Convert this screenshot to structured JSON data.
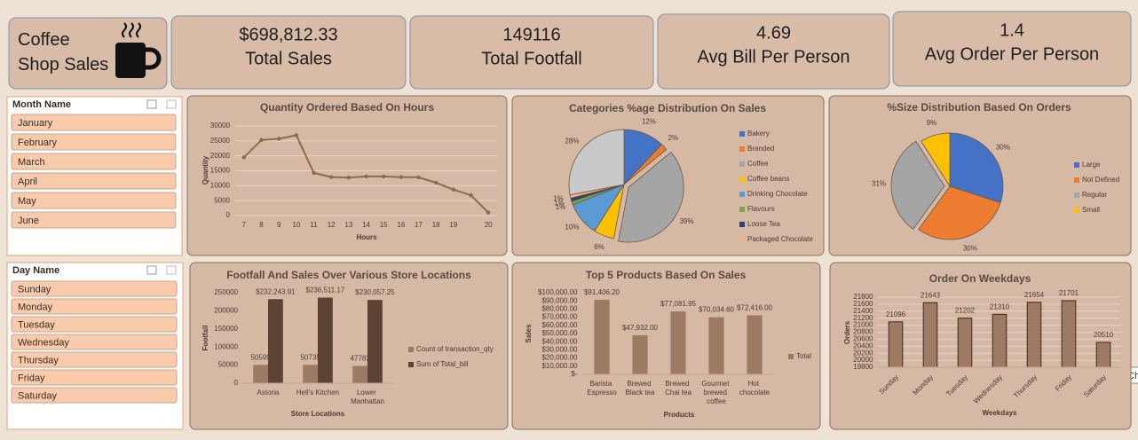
{
  "header": {
    "title": "Coffee Shop Sales"
  },
  "kpis": [
    {
      "value": "$698,812.33",
      "label": "Total Sales"
    },
    {
      "value": "149116",
      "label": "Total Footfall"
    },
    {
      "value": "4.69",
      "label": "Avg Bill Per Person"
    },
    {
      "value": "1.4",
      "label": "Avg Order Per Person"
    }
  ],
  "slicers": [
    {
      "title": "Month Name",
      "items": [
        "January",
        "February",
        "March",
        "April",
        "May",
        "June"
      ]
    },
    {
      "title": "Day Name",
      "items": [
        "Sunday",
        "Monday",
        "Tuesday",
        "Wednesday",
        "Thursday",
        "Friday",
        "Saturday"
      ]
    }
  ],
  "tooltip": "Ch",
  "chart_data": [
    {
      "type": "line",
      "title": "Quantity Ordered Based On Hours",
      "categories": [
        "7",
        "8",
        "9",
        "10",
        "11",
        "12",
        "13",
        "14",
        "15",
        "16",
        "17",
        "18",
        "19",
        null,
        "20"
      ],
      "values": [
        19500,
        25300,
        25700,
        26900,
        14300,
        12900,
        12700,
        13100,
        13100,
        12900,
        12800,
        11000,
        8700,
        6800,
        1000
      ],
      "color": "#8B6B52",
      "ylim": [
        0,
        30000
      ],
      "yticks": [
        0,
        5000,
        10000,
        15000,
        20000,
        25000,
        30000
      ],
      "ylabel": "Quantity",
      "xlabel": "Hours",
      "grid": true
    },
    {
      "type": "pie",
      "title": "Categories %age Distribution On Sales",
      "categories": [
        "Bakery",
        "Branded",
        "Coffee",
        "Coffee beans",
        "Drinking Chocolate",
        "Flavours",
        "Loose Tea",
        "Packaged Chocolate",
        null
      ],
      "values": [
        12,
        2,
        39,
        6,
        10,
        1,
        1,
        1,
        28
      ],
      "value_labels": [
        "12%",
        "2%",
        "39%",
        "6%",
        "10%",
        "1%",
        "1%",
        "1%",
        "28%"
      ],
      "colors": [
        "#4472C4",
        "#ED7D31",
        "#A5A5A5",
        "#FFC000",
        "#5B9BD5",
        "#70AD47",
        "#264478",
        "#F4B183",
        "#C9C9C9"
      ],
      "legend": "right"
    },
    {
      "type": "pie",
      "title": "%Size Distribution Based On Orders",
      "categories": [
        "Large",
        "Not Defined",
        "Regular",
        "Small"
      ],
      "values": [
        30,
        30,
        31,
        9
      ],
      "value_labels": [
        "30%",
        "30%",
        "31%",
        "9%"
      ],
      "colors": [
        "#4472C4",
        "#ED7D31",
        "#A5A5A5",
        "#FFC000"
      ],
      "legend": "right"
    },
    {
      "type": "bar",
      "title": "Footfall And Sales Over Various Store Locations",
      "categories": [
        "Astoria",
        "Hell's Kitchen",
        "Lower Manhattan"
      ],
      "series": [
        {
          "name": "Count of transaction_qty",
          "color": "#9C7A63",
          "values": [
            50599,
            50735,
            47782
          ]
        },
        {
          "name": "Sum of Total_bill",
          "color": "#5C4333",
          "values": [
            232243.91,
            236511.17,
            230057.25
          ],
          "value_labels": [
            "$232,243.91",
            "$236,511.17",
            "$230,057.25"
          ]
        }
      ],
      "ylim": [
        0,
        250000
      ],
      "yticks": [
        0,
        50000,
        100000,
        150000,
        200000,
        250000
      ],
      "ylabel": "Footfall",
      "xlabel": "Store Locations",
      "legend": "right",
      "grid": false
    },
    {
      "type": "bar",
      "title": "Top 5 Products Based On Sales",
      "categories": [
        "Barista Espresso",
        "Brewed Black tea",
        "Brewed Chai tea",
        "Gourmet brewed coffee",
        "Hot chocolate"
      ],
      "series": [
        {
          "name": "Total",
          "color": "#9C7A63",
          "values": [
            91406.2,
            47932.0,
            77081.95,
            70034.6,
            72416.0
          ],
          "value_labels": [
            "$91,406.20",
            "$47,932.00",
            "$77,081.95",
            "$70,034.60",
            "$72,416.00"
          ]
        }
      ],
      "ylim": [
        0,
        100000
      ],
      "yticks": [
        {
          "value": 0,
          "label": "$-"
        },
        {
          "value": 10000,
          "label": "$10,000.00"
        },
        {
          "value": 20000,
          "label": "$20,000.00"
        },
        {
          "value": 30000,
          "label": "$30,000.00"
        },
        {
          "value": 40000,
          "label": "$40,000.00"
        },
        {
          "value": 50000,
          "label": "$50,000.00"
        },
        {
          "value": 60000,
          "label": "$60,000.00"
        },
        {
          "value": 70000,
          "label": "$70,000.00"
        },
        {
          "value": 80000,
          "label": "$80,000.00"
        },
        {
          "value": 90000,
          "label": "$90,000.00"
        },
        {
          "value": 100000,
          "label": "$100,000.00"
        }
      ],
      "ylabel": "Sales",
      "xlabel": "Products",
      "legend": "right",
      "grid": false
    },
    {
      "type": "bar",
      "title": "Order On Weekdays",
      "categories": [
        "Sunday",
        "Monday",
        "Tuesday",
        "Wednesday",
        "Thursday",
        "Friday",
        "Saturday"
      ],
      "values": [
        21096,
        21643,
        21202,
        21310,
        21654,
        21701,
        20510
      ],
      "color": "#9C7A63",
      "ylim": [
        19800,
        21800
      ],
      "yticks": [
        19800,
        20000,
        20200,
        20400,
        20600,
        20800,
        21000,
        21200,
        21400,
        21600,
        21800
      ],
      "ylabel": "Orders",
      "xlabel": "Weekdays",
      "grid": true
    }
  ]
}
